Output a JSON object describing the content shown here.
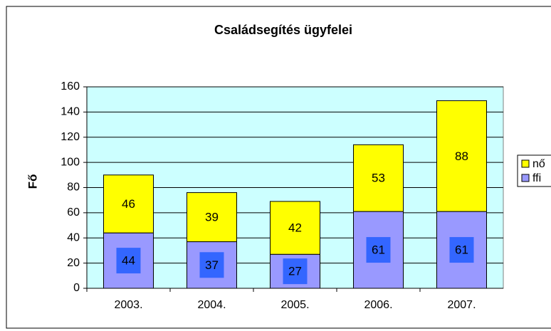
{
  "chart_data": {
    "type": "stacked_bar",
    "title": "Családsegítés ügyfelei",
    "y_label": "Fő",
    "categories": [
      "2003.",
      "2004.",
      "2005.",
      "2006.",
      "2007."
    ],
    "series": [
      {
        "name": "ffi",
        "color": "#9999ff",
        "values": [
          44,
          37,
          27,
          61,
          61
        ]
      },
      {
        "name": "nő",
        "color": "#ffff00",
        "values": [
          46,
          39,
          42,
          53,
          88
        ]
      }
    ],
    "ylim": [
      0,
      160
    ],
    "yticks": [
      0,
      20,
      40,
      60,
      80,
      100,
      120,
      140,
      160
    ],
    "grid": true,
    "legend": "right"
  }
}
